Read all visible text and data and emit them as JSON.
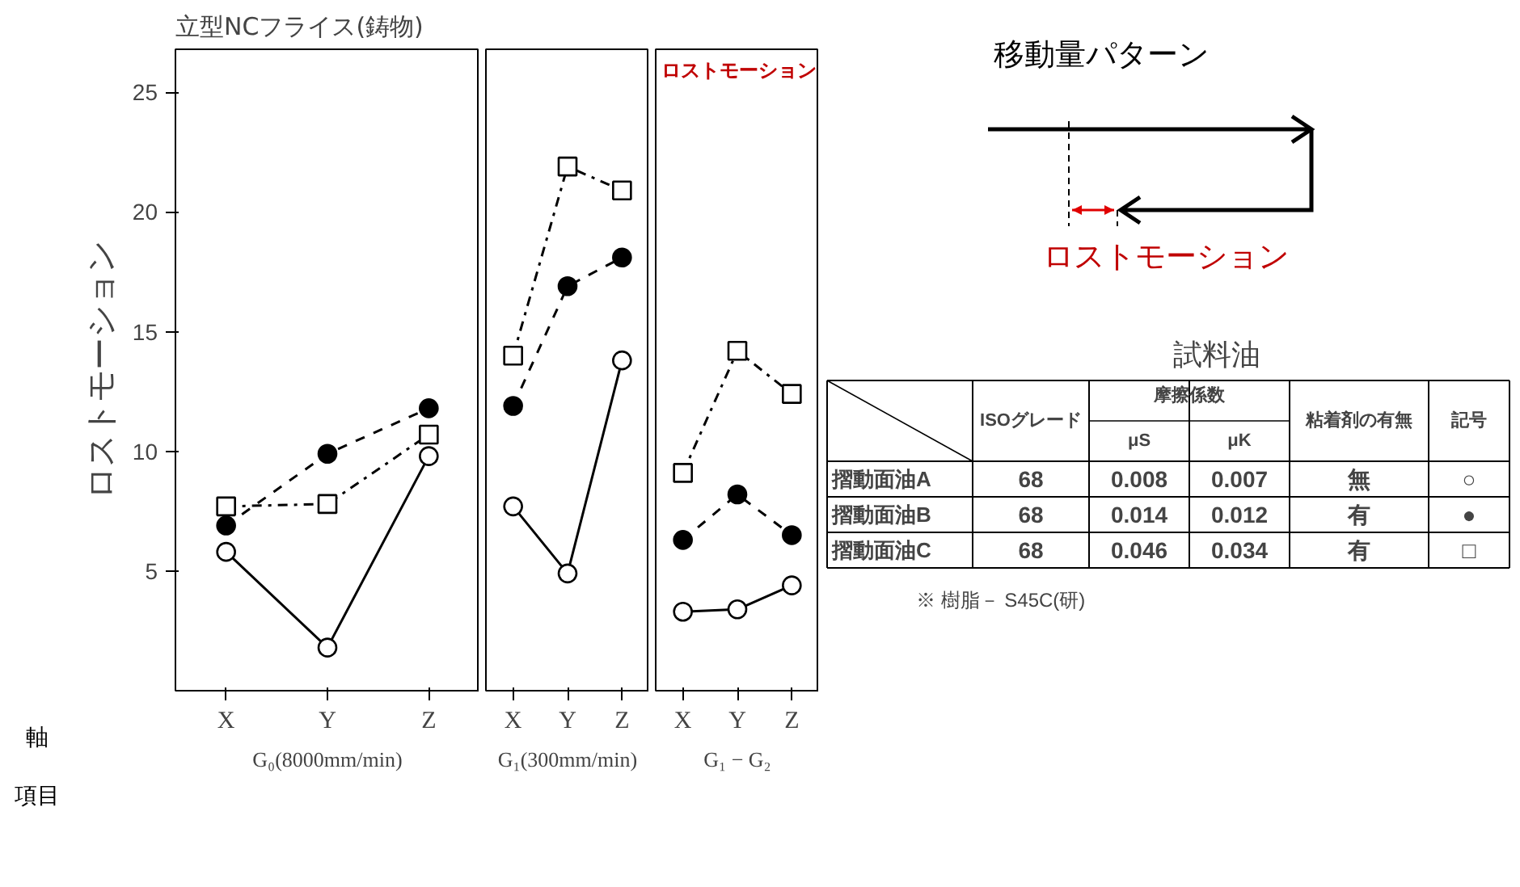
{
  "chart_data": [
    {
      "type": "line",
      "title": "立型NCフライス(鋳物)",
      "ylabel": "ロストモーション",
      "xlabel": "G₀(8000mm/min)",
      "categories": [
        "X",
        "Y",
        "Z"
      ],
      "ylim": [
        0,
        26.8
      ],
      "yticks": [
        5,
        10,
        15,
        20,
        25
      ],
      "annotations": [
        "軸",
        "項目"
      ],
      "series": [
        {
          "color": "#000000",
          "values": [
            5.8,
            1.8,
            9.8
          ],
          "marker": "circle",
          "line_style": "solid"
        },
        {
          "color": "#000000",
          "values": [
            6.9,
            9.9,
            11.8
          ],
          "marker": "circle",
          "line_style": "dashed"
        },
        {
          "color": "#000000",
          "values": [
            7.7,
            7.8,
            10.7
          ],
          "marker": "square",
          "line_style": "dashdot"
        }
      ]
    },
    {
      "type": "line",
      "xlabel": "G₁(300mm/min)",
      "categories": [
        "X",
        "Y",
        "Z"
      ],
      "ylim": [
        0,
        26.8
      ],
      "yticks": [
        5,
        10,
        15,
        20,
        25
      ],
      "tick_labels": "x",
      "series": [
        {
          "color": "#000000",
          "values": [
            7.7,
            4.9,
            13.8
          ],
          "marker": "circle",
          "line_style": "solid"
        },
        {
          "color": "#000000",
          "values": [
            11.9,
            16.9,
            18.1
          ],
          "marker": "circle",
          "line_style": "dashed"
        },
        {
          "color": "#000000",
          "values": [
            14.0,
            21.9,
            20.9
          ],
          "marker": "square",
          "line_style": "dashdot"
        }
      ]
    },
    {
      "type": "line",
      "xlabel": "G₁ − G₂",
      "categories": [
        "X",
        "Y",
        "Z"
      ],
      "ylim": [
        0,
        26.8
      ],
      "yticks": [
        5,
        10,
        15,
        20,
        25
      ],
      "tick_labels": "x",
      "annotations": [
        "ロストモーション"
      ],
      "series": [
        {
          "color": "#000000",
          "values": [
            3.3,
            3.4,
            4.4
          ],
          "marker": "circle",
          "line_style": "solid"
        },
        {
          "color": "#000000",
          "values": [
            6.3,
            8.2,
            6.5
          ],
          "marker": "circle",
          "line_style": "dashed"
        },
        {
          "color": "#000000",
          "values": [
            9.1,
            14.2,
            12.4
          ],
          "marker": "square",
          "line_style": "dashdot"
        }
      ]
    },
    {
      "type": "other",
      "title": "移動量パターン",
      "annotations": [
        "ロストモーション"
      ]
    },
    {
      "type": "other",
      "title": "試料油",
      "subtitle": "摩擦係数",
      "categories": [
        "ISOグレード",
        "μS",
        "μK",
        "粘着剤の有無",
        "記号"
      ],
      "y_categories": [
        "摺動面油A",
        "摺動面油B",
        "摺動面油C"
      ],
      "cell_labels": [
        [
          "68",
          "0.008",
          "0.007",
          "無",
          "○"
        ],
        [
          "68",
          "0.014",
          "0.012",
          "有",
          "●"
        ],
        [
          "68",
          "0.046",
          "0.034",
          "有",
          "□"
        ]
      ],
      "annotations": [
        "※ 樹脂－ S45C(研)"
      ]
    }
  ]
}
